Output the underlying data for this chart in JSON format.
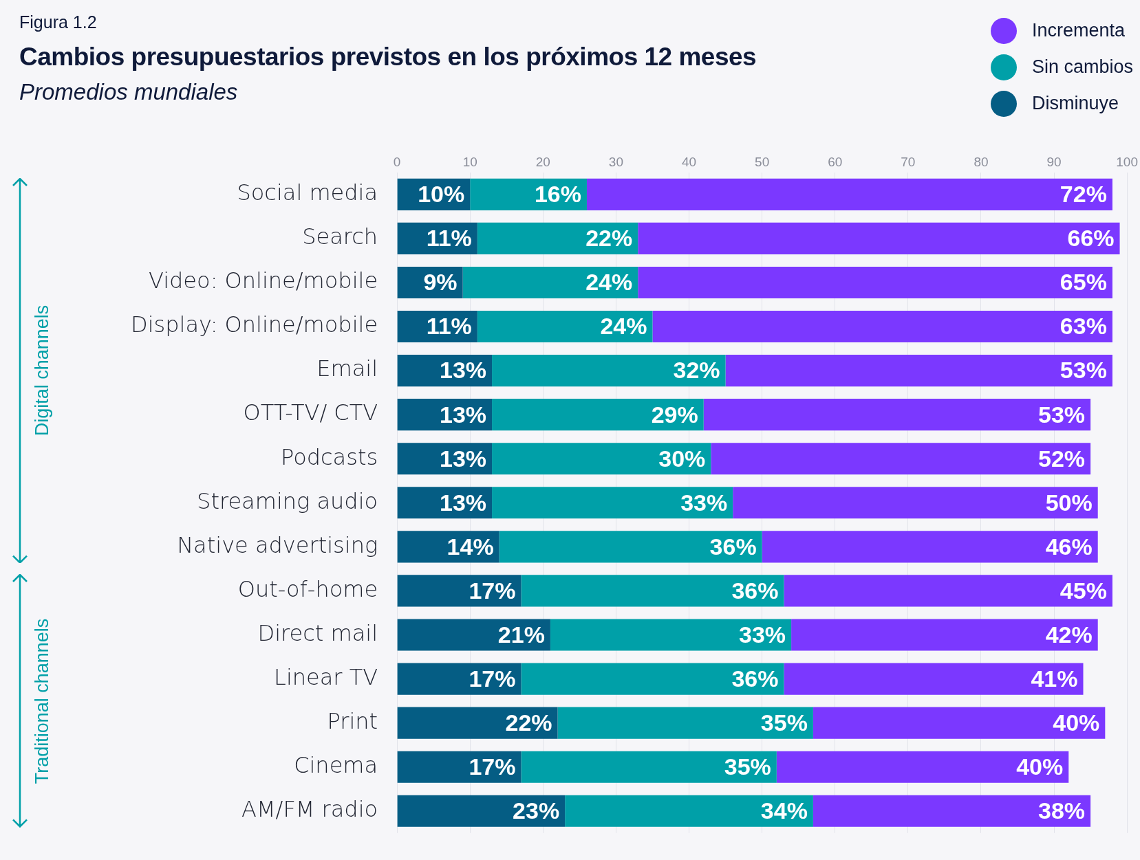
{
  "chart_data": {
    "type": "bar",
    "orientation": "horizontal",
    "stacked": true,
    "title": "Cambios presupuestarios previstos en los próximos 12 meses",
    "subtitle": "Promedios mundiales",
    "annotations": [
      "Figura 1.2",
      "Digital channels",
      "Traditional channels"
    ],
    "categories": [
      "Social media",
      "Search",
      "Video: Online/mobile",
      "Display: Online/mobile",
      "Email",
      "OTT-TV/ CTV",
      "Podcasts",
      "Streaming audio",
      "Native advertising",
      "Out-of-home",
      "Direct mail",
      "Linear TV",
      "Print",
      "Cinema",
      "AM/FM radio"
    ],
    "series": [
      {
        "name": "Disminuye",
        "color": "#055d84",
        "values": [
          10,
          11,
          9,
          11,
          13,
          13,
          13,
          13,
          14,
          17,
          21,
          17,
          22,
          17,
          23
        ],
        "value_labels": [
          "10%",
          "11%",
          "9%",
          "11%",
          "13%",
          "13%",
          "13%",
          "13%",
          "14%",
          "17%",
          "21%",
          "17%",
          "22%",
          "17%",
          "23%"
        ]
      },
      {
        "name": "Sin cambios",
        "color": "#00a0a8",
        "values": [
          16,
          22,
          24,
          24,
          32,
          29,
          30,
          33,
          36,
          36,
          33,
          36,
          35,
          35,
          34
        ],
        "value_labels": [
          "16%",
          "22%",
          "24%",
          "24%",
          "32%",
          "29%",
          "30%",
          "33%",
          "36%",
          "36%",
          "33%",
          "36%",
          "35%",
          "35%",
          "34%"
        ]
      },
      {
        "name": "Incrementa",
        "color": "#7b38ff",
        "values": [
          72,
          66,
          65,
          63,
          53,
          53,
          52,
          50,
          46,
          45,
          42,
          41,
          40,
          40,
          38
        ],
        "value_labels": [
          "72%",
          "66%",
          "65%",
          "63%",
          "53%",
          "53%",
          "52%",
          "50%",
          "46%",
          "45%",
          "42%",
          "41%",
          "40%",
          "40%",
          "38%"
        ]
      }
    ],
    "xlim": [
      0,
      100
    ],
    "xticks": [
      0,
      10,
      20,
      30,
      40,
      50,
      60,
      70,
      80,
      90,
      100
    ],
    "grid": "x",
    "legend": "top right"
  }
}
